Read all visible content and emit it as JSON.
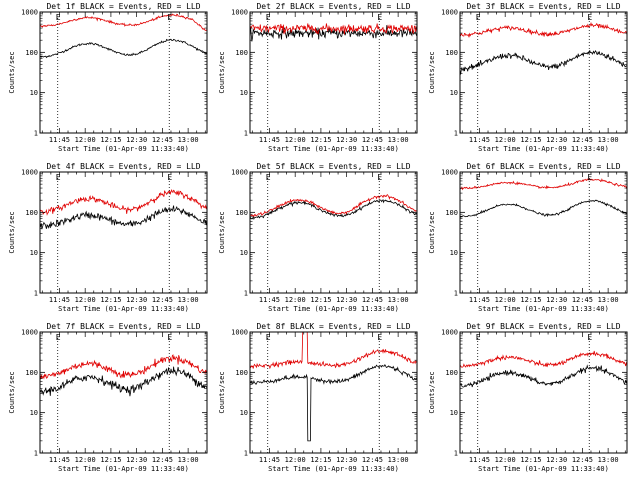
{
  "chart_data": [
    {
      "id": "det1",
      "type": "line",
      "title": "Det 1f BLACK = Events, RED = LLD",
      "ylabel": "Counts/sec",
      "xlabel": "Start Time (01-Apr-09 11:33:40)",
      "yscale": "log",
      "ylim": [
        1,
        1000
      ],
      "y_ticks": [
        "1",
        "10",
        "100",
        "1000"
      ],
      "x_ticks": [
        "11:45",
        "12:00",
        "12:15",
        "12:30",
        "12:45",
        "13:00"
      ],
      "x_tick_minutes": [
        705,
        720,
        735,
        750,
        765,
        780
      ],
      "xlim_minutes": [
        693.67,
        791
      ],
      "markers": [
        {
          "label": "E",
          "minute": 704
        },
        {
          "label": "E",
          "minute": 769
        }
      ],
      "series": [
        {
          "color": "#000000",
          "base": 75,
          "peaks": [
            {
              "t": 722,
              "amp": 2.2,
              "w": 10
            },
            {
              "t": 771,
              "amp": 2.7,
              "w": 10
            }
          ],
          "noise": 0.03
        },
        {
          "color": "#e00000",
          "base": 440,
          "peaks": [
            {
              "t": 722,
              "amp": 1.65,
              "w": 10
            },
            {
              "t": 771,
              "amp": 1.9,
              "w": 10
            }
          ],
          "noise": 0.03,
          "end_drop": true
        }
      ]
    },
    {
      "id": "det2",
      "type": "line",
      "title": "Det 2f BLACK = Events, RED = LLD",
      "ylabel": "Counts/sec",
      "xlabel": "Start Time (01-Apr-09 11:33:40)",
      "yscale": "log",
      "ylim": [
        1,
        1000
      ],
      "y_ticks": [
        "1",
        "10",
        "100",
        "1000"
      ],
      "x_ticks": [
        "11:45",
        "12:00",
        "12:15",
        "12:30",
        "12:45",
        "13:00"
      ],
      "x_tick_minutes": [
        705,
        720,
        735,
        750,
        765,
        780
      ],
      "xlim_minutes": [
        693.67,
        791
      ],
      "markers": [
        {
          "label": "E",
          "minute": 704
        },
        {
          "label": "E",
          "minute": 769
        }
      ],
      "series": [
        {
          "color": "#000000",
          "base": 300,
          "peaks": [],
          "noise": 0.14
        },
        {
          "color": "#e00000",
          "base": 390,
          "peaks": [],
          "noise": 0.12
        }
      ]
    },
    {
      "id": "det3",
      "type": "line",
      "title": "Det 3f BLACK = Events, RED = LLD",
      "ylabel": "Counts/sec",
      "xlabel": "Start Time (01-Apr-09 11:33:40)",
      "yscale": "log",
      "ylim": [
        1,
        1000
      ],
      "y_ticks": [
        "1",
        "10",
        "100",
        "1000"
      ],
      "x_ticks": [
        "11:45",
        "12:00",
        "12:15",
        "12:30",
        "12:45",
        "13:00"
      ],
      "x_tick_minutes": [
        705,
        720,
        735,
        750,
        765,
        780
      ],
      "xlim_minutes": [
        693.67,
        791
      ],
      "markers": [
        {
          "label": "E",
          "minute": 704
        },
        {
          "label": "E",
          "minute": 769
        }
      ],
      "series": [
        {
          "color": "#000000",
          "base": 38,
          "peaks": [
            {
              "t": 722,
              "amp": 2.2,
              "w": 10
            },
            {
              "t": 771,
              "amp": 2.6,
              "w": 10
            }
          ],
          "noise": 0.08
        },
        {
          "color": "#e00000",
          "base": 270,
          "peaks": [
            {
              "t": 722,
              "amp": 1.5,
              "w": 10
            },
            {
              "t": 771,
              "amp": 1.7,
              "w": 10
            }
          ],
          "noise": 0.06
        }
      ]
    },
    {
      "id": "det4",
      "type": "line",
      "title": "Det 4f BLACK = Events, RED = LLD",
      "ylabel": "Counts/sec",
      "xlabel": "Start Time (01-Apr-09 11:33:40)",
      "yscale": "log",
      "ylim": [
        1,
        1000
      ],
      "y_ticks": [
        "1",
        "10",
        "100",
        "1000"
      ],
      "x_ticks": [
        "11:45",
        "12:00",
        "12:15",
        "12:30",
        "12:45",
        "13:00"
      ],
      "x_tick_minutes": [
        705,
        720,
        735,
        750,
        765,
        780
      ],
      "xlim_minutes": [
        693.67,
        791
      ],
      "markers": [
        {
          "label": "E",
          "minute": 704
        },
        {
          "label": "E",
          "minute": 769
        }
      ],
      "series": [
        {
          "color": "#000000",
          "base": 45,
          "peaks": [
            {
              "t": 722,
              "amp": 1.9,
              "w": 10
            },
            {
              "t": 771,
              "amp": 2.6,
              "w": 10
            }
          ],
          "noise": 0.1
        },
        {
          "color": "#e00000",
          "base": 100,
          "peaks": [
            {
              "t": 722,
              "amp": 2.2,
              "w": 10
            },
            {
              "t": 771,
              "amp": 3.1,
              "w": 10
            }
          ],
          "noise": 0.08
        }
      ]
    },
    {
      "id": "det5",
      "type": "line",
      "title": "Det 5f BLACK = Events, RED = LLD",
      "ylabel": "Counts/sec",
      "xlabel": "Start Time (01-Apr-09 11:33:40)",
      "yscale": "log",
      "ylim": [
        1,
        1000
      ],
      "y_ticks": [
        "1",
        "10",
        "100",
        "1000"
      ],
      "x_ticks": [
        "11:45",
        "12:00",
        "12:15",
        "12:30",
        "12:45",
        "13:00"
      ],
      "x_tick_minutes": [
        705,
        720,
        735,
        750,
        765,
        780
      ],
      "xlim_minutes": [
        693.67,
        791
      ],
      "markers": [
        {
          "label": "E",
          "minute": 704
        },
        {
          "label": "E",
          "minute": 769
        }
      ],
      "series": [
        {
          "color": "#000000",
          "base": 70,
          "peaks": [
            {
              "t": 722,
              "amp": 2.5,
              "w": 10
            },
            {
              "t": 771,
              "amp": 2.8,
              "w": 10
            }
          ],
          "noise": 0.04
        },
        {
          "color": "#e00000",
          "base": 80,
          "peaks": [
            {
              "t": 722,
              "amp": 2.5,
              "w": 10
            },
            {
              "t": 771,
              "amp": 3.2,
              "w": 10
            }
          ],
          "noise": 0.04
        }
      ]
    },
    {
      "id": "det6",
      "type": "line",
      "title": "Det 6f BLACK = Events, RED = LLD",
      "ylabel": "Counts/sec",
      "xlabel": "Start Time (01-Apr-09 11:33:40)",
      "yscale": "log",
      "ylim": [
        1,
        1000
      ],
      "y_ticks": [
        "1",
        "10",
        "100",
        "1000"
      ],
      "x_ticks": [
        "11:45",
        "12:00",
        "12:15",
        "12:30",
        "12:45",
        "13:00"
      ],
      "x_tick_minutes": [
        705,
        720,
        735,
        750,
        765,
        780
      ],
      "xlim_minutes": [
        693.67,
        791
      ],
      "markers": [
        {
          "label": "E",
          "minute": 704
        },
        {
          "label": "E",
          "minute": 769
        }
      ],
      "series": [
        {
          "color": "#000000",
          "base": 75,
          "peaks": [
            {
              "t": 722,
              "amp": 2.1,
              "w": 10
            },
            {
              "t": 771,
              "amp": 2.6,
              "w": 10
            }
          ],
          "noise": 0.03
        },
        {
          "color": "#e00000",
          "base": 390,
          "peaks": [
            {
              "t": 722,
              "amp": 1.4,
              "w": 10
            },
            {
              "t": 771,
              "amp": 1.65,
              "w": 10
            }
          ],
          "noise": 0.03
        }
      ]
    },
    {
      "id": "det7",
      "type": "line",
      "title": "Det 7f BLACK = Events, RED = LLD",
      "ylabel": "Counts/sec",
      "xlabel": "Start Time (01-Apr-09 11:33:40)",
      "yscale": "log",
      "ylim": [
        1,
        1000
      ],
      "y_ticks": [
        "1",
        "10",
        "100",
        "1000"
      ],
      "x_ticks": [
        "11:45",
        "12:00",
        "12:15",
        "12:30",
        "12:45",
        "13:00"
      ],
      "x_tick_minutes": [
        705,
        720,
        735,
        750,
        765,
        780
      ],
      "xlim_minutes": [
        693.67,
        791
      ],
      "markers": [
        {
          "label": "E",
          "minute": 704
        },
        {
          "label": "E",
          "minute": 769
        }
      ],
      "series": [
        {
          "color": "#000000",
          "base": 32,
          "peaks": [
            {
              "t": 722,
              "amp": 2.4,
              "w": 10
            },
            {
              "t": 771,
              "amp": 3.4,
              "w": 10
            }
          ],
          "noise": 0.12
        },
        {
          "color": "#e00000",
          "base": 75,
          "peaks": [
            {
              "t": 722,
              "amp": 2.2,
              "w": 10
            },
            {
              "t": 771,
              "amp": 3.0,
              "w": 10
            }
          ],
          "noise": 0.1
        }
      ]
    },
    {
      "id": "det8",
      "type": "line",
      "title": "Det 8f BLACK = Events, RED = LLD",
      "ylabel": "Counts/sec",
      "xlabel": "Start Time (01-Apr-09 11:33:40)",
      "yscale": "log",
      "ylim": [
        1,
        1000
      ],
      "y_ticks": [
        "1",
        "10",
        "100",
        "1000"
      ],
      "x_ticks": [
        "11:45",
        "12:00",
        "12:15",
        "12:30",
        "12:45",
        "13:00"
      ],
      "x_tick_minutes": [
        705,
        720,
        735,
        750,
        765,
        780
      ],
      "xlim_minutes": [
        693.67,
        791
      ],
      "markers": [
        {
          "label": "E",
          "minute": 704
        },
        {
          "label": "E",
          "minute": 769
        }
      ],
      "series": [
        {
          "color": "#000000",
          "base": 55,
          "peaks": [
            {
              "t": 722,
              "amp": 1.4,
              "w": 10
            },
            {
              "t": 771,
              "amp": 2.6,
              "w": 10
            }
          ],
          "noise": 0.06,
          "spike": {
            "start": 727,
            "end": 729,
            "level": 2
          }
        },
        {
          "color": "#e00000",
          "base": 140,
          "peaks": [
            {
              "t": 722,
              "amp": 1.3,
              "w": 10
            },
            {
              "t": 771,
              "amp": 2.4,
              "w": 10
            }
          ],
          "noise": 0.06,
          "spike": {
            "start": 724,
            "end": 727,
            "level": 1000
          }
        }
      ]
    },
    {
      "id": "det9",
      "type": "line",
      "title": "Det 9f BLACK = Events, RED = LLD",
      "ylabel": "Counts/sec",
      "xlabel": "Start Time (01-Apr-09 11:33:40)",
      "yscale": "log",
      "ylim": [
        1,
        1000
      ],
      "y_ticks": [
        "1",
        "10",
        "100",
        "1000"
      ],
      "x_ticks": [
        "11:45",
        "12:00",
        "12:15",
        "12:30",
        "12:45",
        "13:00"
      ],
      "x_tick_minutes": [
        705,
        720,
        735,
        750,
        765,
        780
      ],
      "xlim_minutes": [
        693.67,
        791
      ],
      "markers": [
        {
          "label": "E",
          "minute": 704
        },
        {
          "label": "E",
          "minute": 769
        }
      ],
      "series": [
        {
          "color": "#000000",
          "base": 45,
          "peaks": [
            {
              "t": 722,
              "amp": 2.2,
              "w": 10
            },
            {
              "t": 771,
              "amp": 2.8,
              "w": 10
            }
          ],
          "noise": 0.07
        },
        {
          "color": "#e00000",
          "base": 140,
          "peaks": [
            {
              "t": 722,
              "amp": 1.7,
              "w": 10
            },
            {
              "t": 771,
              "amp": 2.1,
              "w": 10
            }
          ],
          "noise": 0.06
        }
      ]
    }
  ]
}
